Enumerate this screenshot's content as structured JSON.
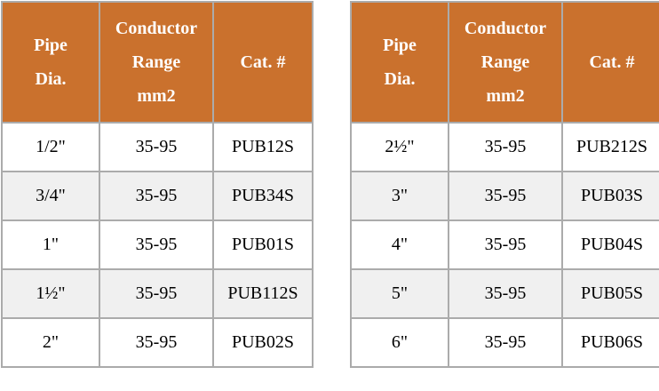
{
  "page": {
    "background": "#FFFFFF"
  },
  "colors": {
    "header_bg": "#CA712D",
    "header_text": "#FFFFFF",
    "border": "#ABABAB",
    "row_bg": "#FFFFFF",
    "row_alt_bg": "#F0F0F0",
    "cell_text": "#000000"
  },
  "tables": [
    {
      "name": "pipe-table-left",
      "headers": [
        "Pipe\nDia.",
        "Conductor\nRange\nmm2",
        "Cat. #"
      ],
      "column_keys": [
        "pipe-dia",
        "conductor-range",
        "cat-num"
      ],
      "rows": [
        [
          "1/2\"",
          "35-95",
          "PUB12S"
        ],
        [
          "3/4\"",
          "35-95",
          "PUB34S"
        ],
        [
          "1\"",
          "35-95",
          "PUB01S"
        ],
        [
          "1½\"",
          "35-95",
          "PUB112S"
        ],
        [
          "2\"",
          "35-95",
          "PUB02S"
        ]
      ]
    },
    {
      "name": "pipe-table-right",
      "headers": [
        "Pipe\nDia.",
        "Conductor\nRange\nmm2",
        "Cat. #"
      ],
      "column_keys": [
        "pipe-dia",
        "conductor-range",
        "cat-num"
      ],
      "rows": [
        [
          "2½\"",
          "35-95",
          "PUB212S"
        ],
        [
          "3\"",
          "35-95",
          "PUB03S"
        ],
        [
          "4\"",
          "35-95",
          "PUB04S"
        ],
        [
          "5\"",
          "35-95",
          "PUB05S"
        ],
        [
          "6\"",
          "35-95",
          "PUB06S"
        ]
      ]
    }
  ]
}
